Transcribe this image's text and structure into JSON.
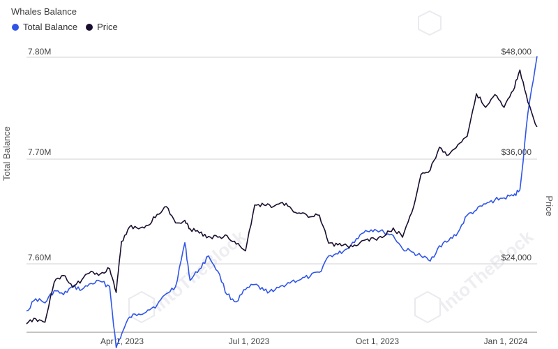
{
  "title": "Whales Balance",
  "legend": [
    {
      "label": "Total Balance",
      "color": "#2f55e8"
    },
    {
      "label": "Price",
      "color": "#1a0e2e"
    }
  ],
  "axes": {
    "left_label": "Total Balance",
    "right_label": "Price",
    "left_ticks": [
      "7.80M",
      "7.70M",
      "7.60M"
    ],
    "right_ticks": [
      "$48,000",
      "$36,000",
      "$24,000"
    ],
    "x_ticks": [
      "Apr 1, 2023",
      "Jul 1, 2023",
      "Oct 1, 2023",
      "Jan 1, 2024"
    ]
  },
  "watermark": "IntoTheBlock",
  "chart_data": {
    "type": "line",
    "title": "Whales Balance",
    "x_range": [
      "2023-01-01",
      "2024-01-23"
    ],
    "left_ylim": [
      7.55,
      7.8
    ],
    "right_ylim": [
      16000,
      48000
    ],
    "grid": true,
    "legend_position": "top-left",
    "series": [
      {
        "name": "Total Balance",
        "axis": "left",
        "unit": "M",
        "color": "#2f55e8",
        "points": [
          [
            "2023-01-01",
            7.551
          ],
          [
            "2023-01-08",
            7.563
          ],
          [
            "2023-01-15",
            7.559
          ],
          [
            "2023-01-22",
            7.571
          ],
          [
            "2023-01-29",
            7.567
          ],
          [
            "2023-02-05",
            7.575
          ],
          [
            "2023-02-12",
            7.572
          ],
          [
            "2023-02-19",
            7.578
          ],
          [
            "2023-02-26",
            7.58
          ],
          [
            "2023-03-05",
            7.575
          ],
          [
            "2023-03-10",
            7.515
          ],
          [
            "2023-03-14",
            7.528
          ],
          [
            "2023-03-20",
            7.545
          ],
          [
            "2023-03-27",
            7.548
          ],
          [
            "2023-04-03",
            7.552
          ],
          [
            "2023-04-10",
            7.557
          ],
          [
            "2023-04-17",
            7.568
          ],
          [
            "2023-04-24",
            7.575
          ],
          [
            "2023-05-01",
            7.618
          ],
          [
            "2023-05-05",
            7.581
          ],
          [
            "2023-05-12",
            7.592
          ],
          [
            "2023-05-19",
            7.605
          ],
          [
            "2023-05-26",
            7.59
          ],
          [
            "2023-06-02",
            7.567
          ],
          [
            "2023-06-09",
            7.56
          ],
          [
            "2023-06-16",
            7.572
          ],
          [
            "2023-06-23",
            7.577
          ],
          [
            "2023-06-30",
            7.571
          ],
          [
            "2023-07-07",
            7.57
          ],
          [
            "2023-07-14",
            7.576
          ],
          [
            "2023-07-21",
            7.58
          ],
          [
            "2023-07-28",
            7.582
          ],
          [
            "2023-08-04",
            7.585
          ],
          [
            "2023-08-11",
            7.589
          ],
          [
            "2023-08-18",
            7.605
          ],
          [
            "2023-08-25",
            7.607
          ],
          [
            "2023-09-01",
            7.612
          ],
          [
            "2023-09-08",
            7.622
          ],
          [
            "2023-09-15",
            7.63
          ],
          [
            "2023-09-22",
            7.631
          ],
          [
            "2023-09-29",
            7.628
          ],
          [
            "2023-10-06",
            7.625
          ],
          [
            "2023-10-13",
            7.612
          ],
          [
            "2023-10-20",
            7.609
          ],
          [
            "2023-10-27",
            7.605
          ],
          [
            "2023-11-03",
            7.6
          ],
          [
            "2023-11-10",
            7.615
          ],
          [
            "2023-11-17",
            7.62
          ],
          [
            "2023-11-24",
            7.628
          ],
          [
            "2023-12-01",
            7.645
          ],
          [
            "2023-12-08",
            7.65
          ],
          [
            "2023-12-15",
            7.656
          ],
          [
            "2023-12-22",
            7.66
          ],
          [
            "2023-12-29",
            7.662
          ],
          [
            "2024-01-05",
            7.664
          ],
          [
            "2024-01-10",
            7.67
          ],
          [
            "2024-01-16",
            7.745
          ],
          [
            "2024-01-23",
            7.801
          ]
        ]
      },
      {
        "name": "Price",
        "axis": "right",
        "unit": "$",
        "color": "#1a0e2e",
        "points": [
          [
            "2023-01-01",
            16600
          ],
          [
            "2023-01-08",
            17200
          ],
          [
            "2023-01-15",
            16800
          ],
          [
            "2023-01-22",
            21500
          ],
          [
            "2023-01-29",
            22300
          ],
          [
            "2023-02-05",
            20900
          ],
          [
            "2023-02-12",
            21800
          ],
          [
            "2023-02-19",
            22800
          ],
          [
            "2023-02-26",
            22500
          ],
          [
            "2023-03-05",
            23100
          ],
          [
            "2023-03-10",
            20300
          ],
          [
            "2023-03-14",
            26300
          ],
          [
            "2023-03-20",
            28000
          ],
          [
            "2023-03-27",
            27800
          ],
          [
            "2023-04-03",
            28200
          ],
          [
            "2023-04-10",
            29500
          ],
          [
            "2023-04-17",
            30400
          ],
          [
            "2023-04-24",
            28500
          ],
          [
            "2023-05-01",
            28800
          ],
          [
            "2023-05-05",
            27800
          ],
          [
            "2023-05-12",
            27300
          ],
          [
            "2023-05-19",
            26900
          ],
          [
            "2023-05-26",
            26800
          ],
          [
            "2023-06-02",
            27000
          ],
          [
            "2023-06-09",
            26000
          ],
          [
            "2023-06-16",
            25200
          ],
          [
            "2023-06-23",
            30600
          ],
          [
            "2023-06-30",
            30600
          ],
          [
            "2023-07-07",
            30400
          ],
          [
            "2023-07-14",
            30900
          ],
          [
            "2023-07-21",
            30100
          ],
          [
            "2023-07-28",
            29600
          ],
          [
            "2023-08-04",
            29200
          ],
          [
            "2023-08-11",
            29400
          ],
          [
            "2023-08-18",
            26100
          ],
          [
            "2023-08-25",
            25900
          ],
          [
            "2023-09-01",
            25800
          ],
          [
            "2023-09-08",
            25800
          ],
          [
            "2023-09-15",
            26500
          ],
          [
            "2023-09-22",
            26600
          ],
          [
            "2023-09-29",
            26900
          ],
          [
            "2023-10-06",
            27900
          ],
          [
            "2023-10-13",
            26800
          ],
          [
            "2023-10-20",
            29700
          ],
          [
            "2023-10-27",
            34200
          ],
          [
            "2023-11-03",
            34700
          ],
          [
            "2023-11-10",
            37400
          ],
          [
            "2023-11-17",
            36500
          ],
          [
            "2023-11-24",
            37700
          ],
          [
            "2023-12-01",
            38700
          ],
          [
            "2023-12-08",
            43700
          ],
          [
            "2023-12-15",
            42100
          ],
          [
            "2023-12-22",
            43600
          ],
          [
            "2023-12-29",
            42100
          ],
          [
            "2024-01-05",
            44100
          ],
          [
            "2024-01-10",
            46500
          ],
          [
            "2024-01-16",
            42700
          ],
          [
            "2024-01-23",
            39800
          ]
        ]
      }
    ]
  }
}
